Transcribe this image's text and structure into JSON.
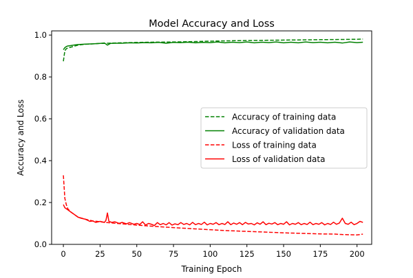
{
  "chart_data": {
    "type": "line",
    "title": "Model Accuracy and Loss",
    "xlabel": "Training Epoch",
    "ylabel": "Accuracy and Loss",
    "xlim": [
      -8,
      210
    ],
    "ylim": [
      0.0,
      1.02
    ],
    "x_ticks": [
      0,
      25,
      50,
      75,
      100,
      125,
      150,
      175,
      200
    ],
    "y_ticks": [
      0.0,
      0.2,
      0.4,
      0.6,
      0.8,
      1.0
    ],
    "grid": false,
    "legend_position": "center-right",
    "series": [
      {
        "name": "Accuracy of training data",
        "color": "#008000",
        "style": "dashed",
        "points": [
          [
            0,
            0.875
          ],
          [
            1,
            0.925
          ],
          [
            2,
            0.935
          ],
          [
            3,
            0.938
          ],
          [
            5,
            0.942
          ],
          [
            8,
            0.948
          ],
          [
            10,
            0.952
          ],
          [
            15,
            0.956
          ],
          [
            20,
            0.958
          ],
          [
            25,
            0.96
          ],
          [
            30,
            0.961
          ],
          [
            40,
            0.963
          ],
          [
            50,
            0.965
          ],
          [
            60,
            0.966
          ],
          [
            75,
            0.967
          ],
          [
            90,
            0.969
          ],
          [
            100,
            0.971
          ],
          [
            125,
            0.974
          ],
          [
            150,
            0.976
          ],
          [
            175,
            0.978
          ],
          [
            190,
            0.979
          ],
          [
            200,
            0.98
          ],
          [
            204,
            0.981
          ]
        ]
      },
      {
        "name": "Accuracy of validation data",
        "color": "#008000",
        "style": "solid",
        "points": [
          [
            0,
            0.93
          ],
          [
            1,
            0.94
          ],
          [
            2,
            0.945
          ],
          [
            3,
            0.948
          ],
          [
            5,
            0.95
          ],
          [
            8,
            0.953
          ],
          [
            10,
            0.955
          ],
          [
            15,
            0.957
          ],
          [
            20,
            0.958
          ],
          [
            25,
            0.96
          ],
          [
            28,
            0.962
          ],
          [
            30,
            0.952
          ],
          [
            32,
            0.96
          ],
          [
            35,
            0.961
          ],
          [
            40,
            0.961
          ],
          [
            45,
            0.963
          ],
          [
            50,
            0.962
          ],
          [
            55,
            0.964
          ],
          [
            60,
            0.963
          ],
          [
            65,
            0.965
          ],
          [
            70,
            0.961
          ],
          [
            75,
            0.965
          ],
          [
            80,
            0.964
          ],
          [
            85,
            0.966
          ],
          [
            90,
            0.963
          ],
          [
            95,
            0.965
          ],
          [
            100,
            0.964
          ],
          [
            105,
            0.967
          ],
          [
            110,
            0.963
          ],
          [
            115,
            0.966
          ],
          [
            120,
            0.964
          ],
          [
            125,
            0.967
          ],
          [
            130,
            0.963
          ],
          [
            135,
            0.966
          ],
          [
            140,
            0.964
          ],
          [
            145,
            0.967
          ],
          [
            150,
            0.963
          ],
          [
            155,
            0.966
          ],
          [
            160,
            0.963
          ],
          [
            165,
            0.967
          ],
          [
            170,
            0.964
          ],
          [
            175,
            0.966
          ],
          [
            180,
            0.963
          ],
          [
            185,
            0.966
          ],
          [
            190,
            0.962
          ],
          [
            195,
            0.967
          ],
          [
            200,
            0.964
          ],
          [
            204,
            0.966
          ]
        ]
      },
      {
        "name": "Loss of training data",
        "color": "#ff0000",
        "style": "dashed",
        "points": [
          [
            0,
            0.33
          ],
          [
            1,
            0.22
          ],
          [
            2,
            0.19
          ],
          [
            3,
            0.17
          ],
          [
            5,
            0.155
          ],
          [
            8,
            0.14
          ],
          [
            10,
            0.13
          ],
          [
            15,
            0.12
          ],
          [
            20,
            0.112
          ],
          [
            25,
            0.108
          ],
          [
            30,
            0.104
          ],
          [
            35,
            0.101
          ],
          [
            40,
            0.098
          ],
          [
            50,
            0.092
          ],
          [
            60,
            0.087
          ],
          [
            75,
            0.08
          ],
          [
            90,
            0.074
          ],
          [
            100,
            0.07
          ],
          [
            110,
            0.066
          ],
          [
            125,
            0.062
          ],
          [
            140,
            0.058
          ],
          [
            150,
            0.055
          ],
          [
            160,
            0.053
          ],
          [
            175,
            0.05
          ],
          [
            185,
            0.049
          ],
          [
            190,
            0.047
          ],
          [
            195,
            0.046
          ],
          [
            200,
            0.045
          ],
          [
            204,
            0.049
          ]
        ]
      },
      {
        "name": "Loss of validation data",
        "color": "#ff0000",
        "style": "solid",
        "points": [
          [
            0,
            0.19
          ],
          [
            1,
            0.175
          ],
          [
            2,
            0.17
          ],
          [
            3,
            0.165
          ],
          [
            5,
            0.155
          ],
          [
            7,
            0.145
          ],
          [
            10,
            0.13
          ],
          [
            12,
            0.125
          ],
          [
            15,
            0.12
          ],
          [
            18,
            0.11
          ],
          [
            20,
            0.112
          ],
          [
            22,
            0.105
          ],
          [
            25,
            0.11
          ],
          [
            28,
            0.105
          ],
          [
            29,
            0.115
          ],
          [
            30,
            0.15
          ],
          [
            31,
            0.11
          ],
          [
            33,
            0.105
          ],
          [
            35,
            0.108
          ],
          [
            38,
            0.1
          ],
          [
            40,
            0.105
          ],
          [
            43,
            0.098
          ],
          [
            45,
            0.104
          ],
          [
            48,
            0.096
          ],
          [
            50,
            0.1
          ],
          [
            52,
            0.095
          ],
          [
            54,
            0.108
          ],
          [
            56,
            0.092
          ],
          [
            58,
            0.1
          ],
          [
            60,
            0.096
          ],
          [
            62,
            0.09
          ],
          [
            64,
            0.104
          ],
          [
            66,
            0.094
          ],
          [
            68,
            0.1
          ],
          [
            70,
            0.093
          ],
          [
            72,
            0.104
          ],
          [
            74,
            0.092
          ],
          [
            76,
            0.098
          ],
          [
            78,
            0.094
          ],
          [
            80,
            0.104
          ],
          [
            82,
            0.095
          ],
          [
            84,
            0.1
          ],
          [
            86,
            0.093
          ],
          [
            88,
            0.105
          ],
          [
            90,
            0.094
          ],
          [
            92,
            0.1
          ],
          [
            94,
            0.095
          ],
          [
            96,
            0.106
          ],
          [
            98,
            0.093
          ],
          [
            100,
            0.1
          ],
          [
            102,
            0.096
          ],
          [
            104,
            0.104
          ],
          [
            106,
            0.094
          ],
          [
            108,
            0.1
          ],
          [
            110,
            0.095
          ],
          [
            112,
            0.108
          ],
          [
            114,
            0.094
          ],
          [
            116,
            0.102
          ],
          [
            118,
            0.096
          ],
          [
            120,
            0.104
          ],
          [
            122,
            0.094
          ],
          [
            124,
            0.105
          ],
          [
            126,
            0.097
          ],
          [
            128,
            0.1
          ],
          [
            130,
            0.093
          ],
          [
            132,
            0.103
          ],
          [
            134,
            0.096
          ],
          [
            136,
            0.108
          ],
          [
            138,
            0.094
          ],
          [
            140,
            0.101
          ],
          [
            142,
            0.097
          ],
          [
            144,
            0.104
          ],
          [
            146,
            0.094
          ],
          [
            148,
            0.1
          ],
          [
            150,
            0.096
          ],
          [
            152,
            0.108
          ],
          [
            154,
            0.093
          ],
          [
            156,
            0.1
          ],
          [
            158,
            0.096
          ],
          [
            160,
            0.104
          ],
          [
            162,
            0.094
          ],
          [
            164,
            0.1
          ],
          [
            166,
            0.095
          ],
          [
            168,
            0.106
          ],
          [
            170,
            0.094
          ],
          [
            172,
            0.1
          ],
          [
            174,
            0.096
          ],
          [
            176,
            0.104
          ],
          [
            178,
            0.093
          ],
          [
            180,
            0.1
          ],
          [
            182,
            0.095
          ],
          [
            184,
            0.106
          ],
          [
            186,
            0.096
          ],
          [
            188,
            0.102
          ],
          [
            190,
            0.125
          ],
          [
            192,
            0.1
          ],
          [
            194,
            0.096
          ],
          [
            196,
            0.106
          ],
          [
            198,
            0.094
          ],
          [
            200,
            0.1
          ],
          [
            202,
            0.11
          ],
          [
            204,
            0.105
          ]
        ]
      }
    ]
  }
}
